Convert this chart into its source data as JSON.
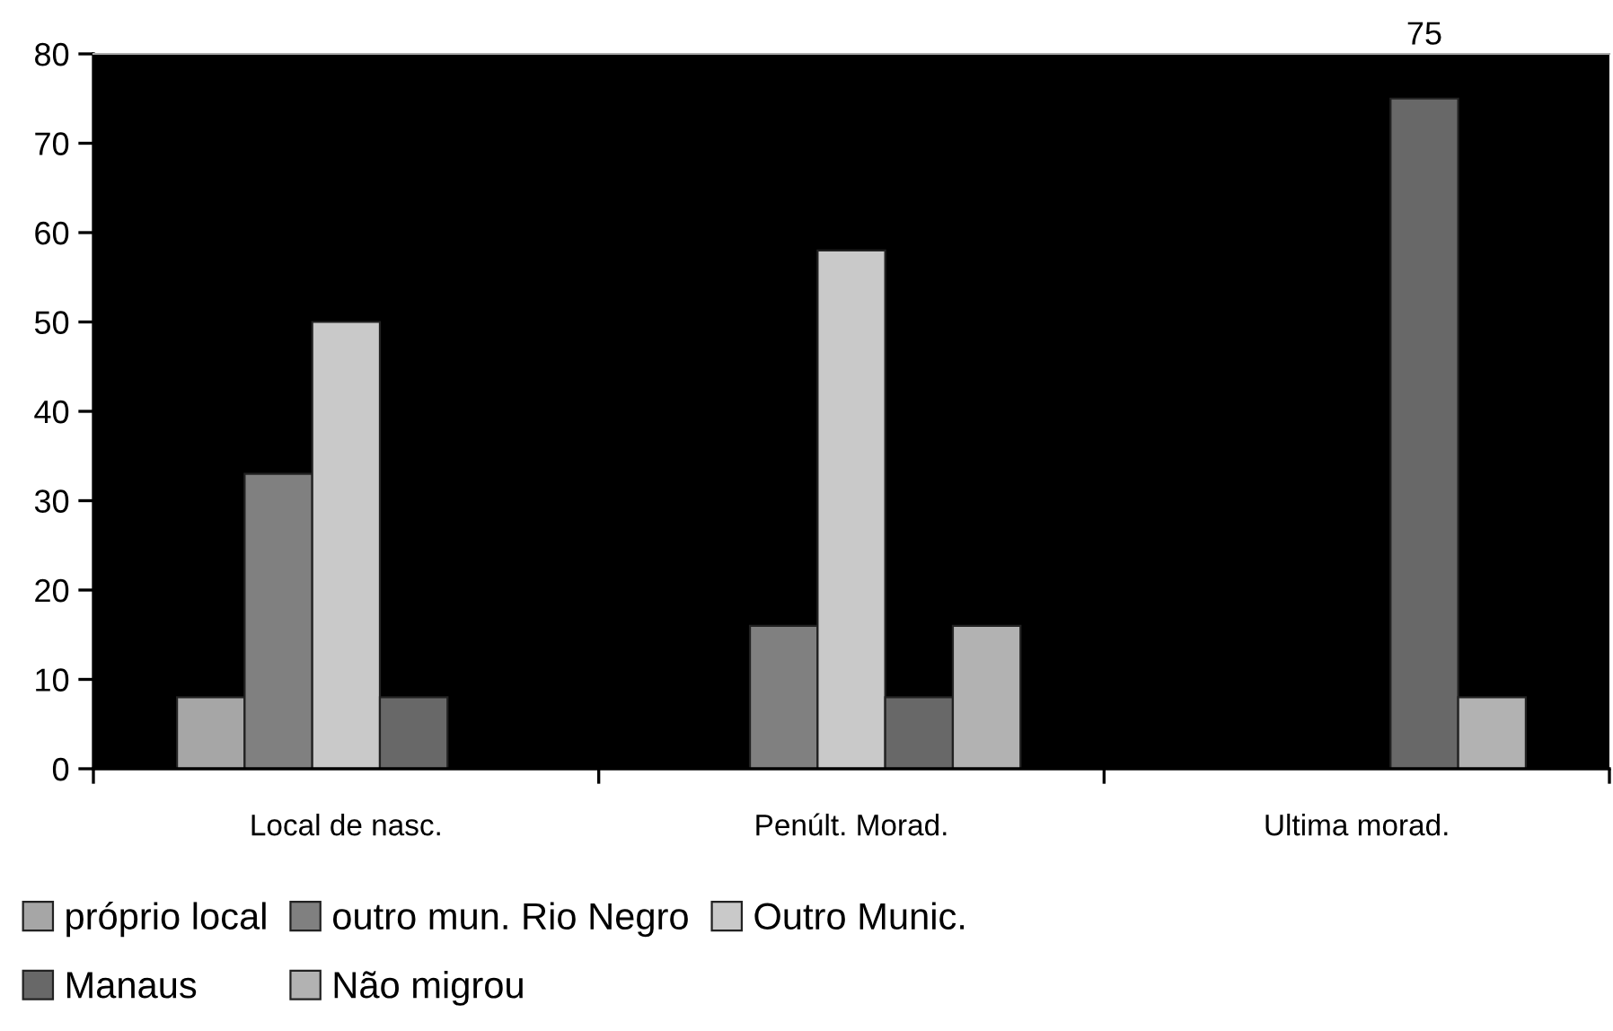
{
  "chart_data": {
    "type": "bar",
    "categories": [
      "Local de nasc.",
      "Penúlt. Morad.",
      "Ultima morad."
    ],
    "series": [
      {
        "name": "próprio local",
        "color": "#a6a6a6",
        "values": [
          8,
          0,
          0
        ]
      },
      {
        "name": "outro mun. Rio Negro",
        "color": "#808080",
        "values": [
          33,
          16,
          0
        ]
      },
      {
        "name": "Outro Munic.",
        "color": "#c9c9c9",
        "values": [
          50,
          58,
          0
        ]
      },
      {
        "name": "Manaus",
        "color": "#686868",
        "values": [
          8,
          8,
          75
        ],
        "value_labels": [
          null,
          null,
          "75"
        ]
      },
      {
        "name": "Não migrou",
        "color": "#b2b2b2",
        "values": [
          0,
          16,
          8
        ]
      }
    ],
    "ylim": [
      0,
      80
    ],
    "yticks": [
      0,
      10,
      20,
      30,
      40,
      50,
      60,
      70,
      80
    ],
    "grid": false,
    "legend": "bottom"
  }
}
